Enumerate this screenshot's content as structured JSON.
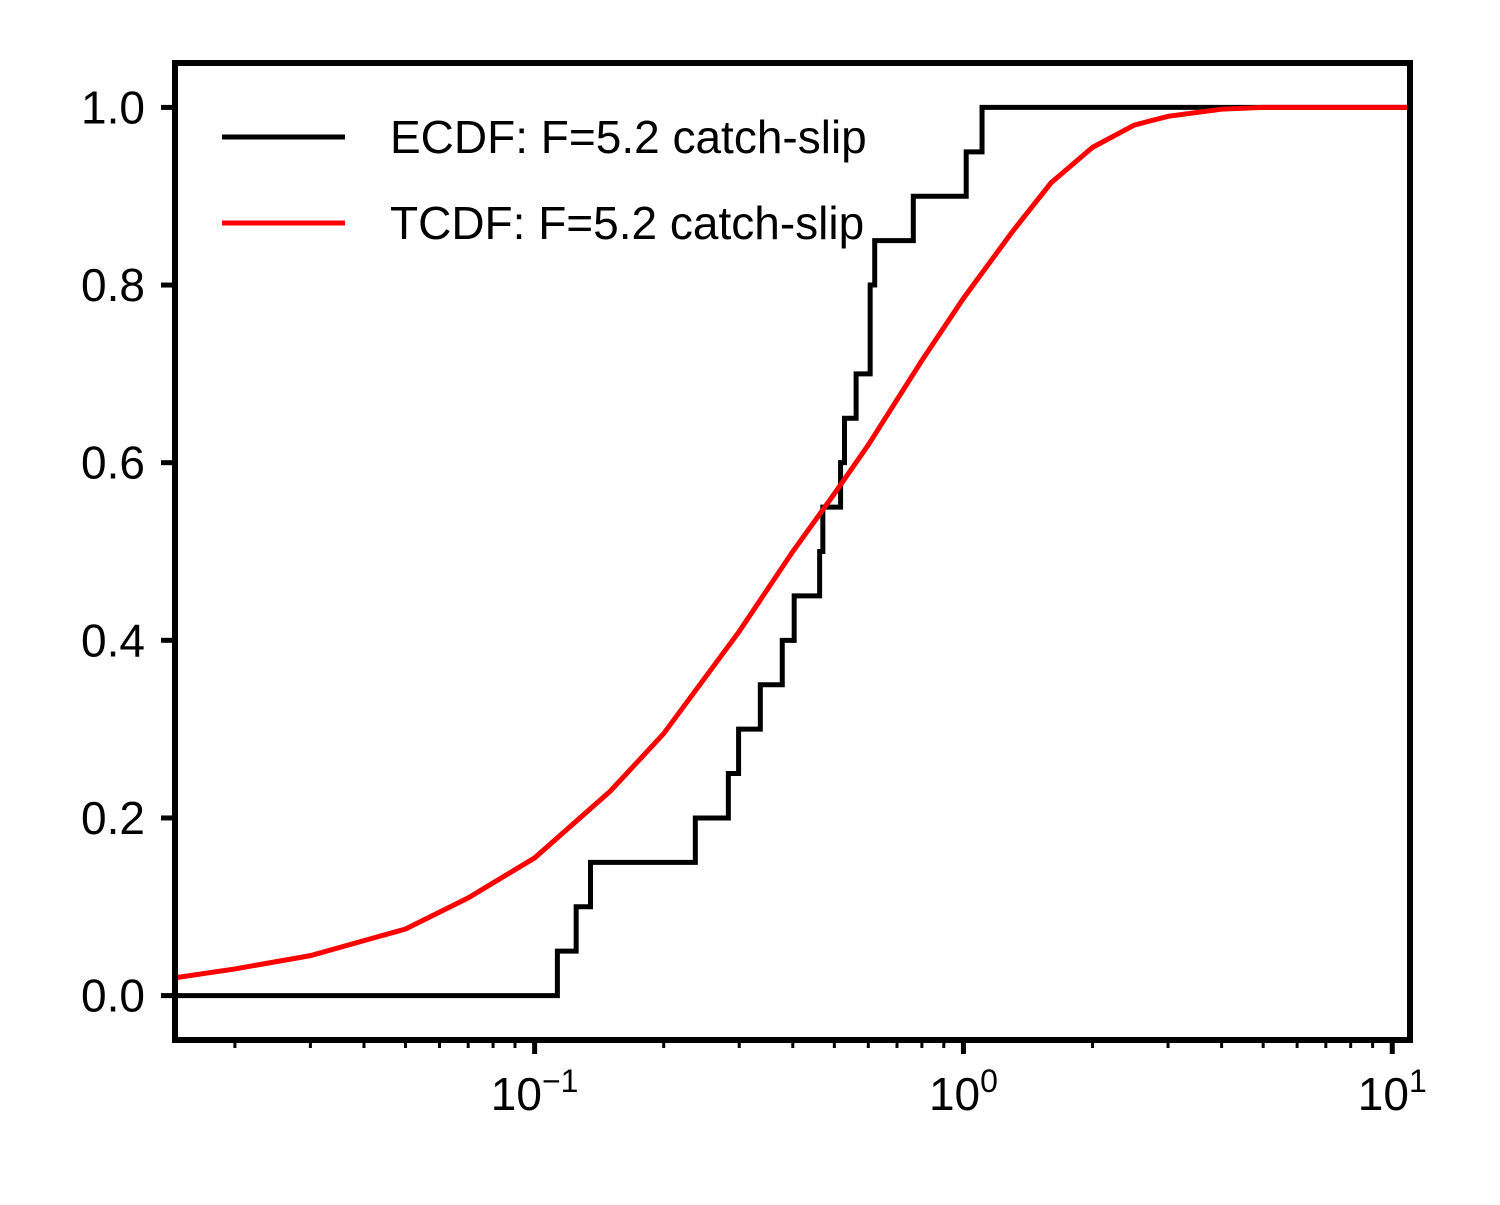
{
  "chart_data": {
    "type": "line",
    "xscale": "log",
    "xlim": [
      0.0145,
      11
    ],
    "ylim": [
      -0.05,
      1.05
    ],
    "grid": false,
    "legend_position": "top-left",
    "xticks": [
      {
        "value": 0.1,
        "base": "10",
        "exp": "−1"
      },
      {
        "value": 1,
        "base": "10",
        "exp": "0"
      },
      {
        "value": 10,
        "base": "10",
        "exp": "1"
      }
    ],
    "yticks": [
      {
        "value": 0.0,
        "label": "0.0"
      },
      {
        "value": 0.2,
        "label": "0.2"
      },
      {
        "value": 0.4,
        "label": "0.4"
      },
      {
        "value": 0.6,
        "label": "0.6"
      },
      {
        "value": 0.8,
        "label": "0.8"
      },
      {
        "value": 1.0,
        "label": "1.0"
      }
    ],
    "series": [
      {
        "name": "ECDF: F=5.2 catch-slip",
        "kind": "step",
        "color": "#000000",
        "x": [
          0.0145,
          0.113,
          0.125,
          0.135,
          0.237,
          0.283,
          0.299,
          0.336,
          0.378,
          0.403,
          0.462,
          0.47,
          0.517,
          0.528,
          0.562,
          0.606,
          0.621,
          0.642,
          0.764,
          1.015,
          1.105,
          11
        ],
        "y": [
          0.0,
          0.05,
          0.1,
          0.15,
          0.2,
          0.25,
          0.3,
          0.35,
          0.4,
          0.45,
          0.5,
          0.55,
          0.6,
          0.65,
          0.7,
          0.8,
          0.85,
          0.85,
          0.9,
          0.95,
          1.0,
          1.0
        ]
      },
      {
        "name": "TCDF: F=5.2 catch-slip",
        "kind": "line",
        "color": "#ff0000",
        "x": [
          0.0145,
          0.02,
          0.03,
          0.05,
          0.07,
          0.1,
          0.15,
          0.2,
          0.3,
          0.4,
          0.5,
          0.6,
          0.8,
          1.0,
          1.3,
          1.6,
          2.0,
          2.5,
          3.0,
          4.0,
          5.0,
          7.0,
          11
        ],
        "y": [
          0.02,
          0.03,
          0.045,
          0.075,
          0.11,
          0.155,
          0.23,
          0.295,
          0.41,
          0.5,
          0.565,
          0.62,
          0.715,
          0.785,
          0.86,
          0.915,
          0.955,
          0.98,
          0.99,
          0.998,
          1.0,
          1.0,
          1.0
        ]
      }
    ]
  }
}
